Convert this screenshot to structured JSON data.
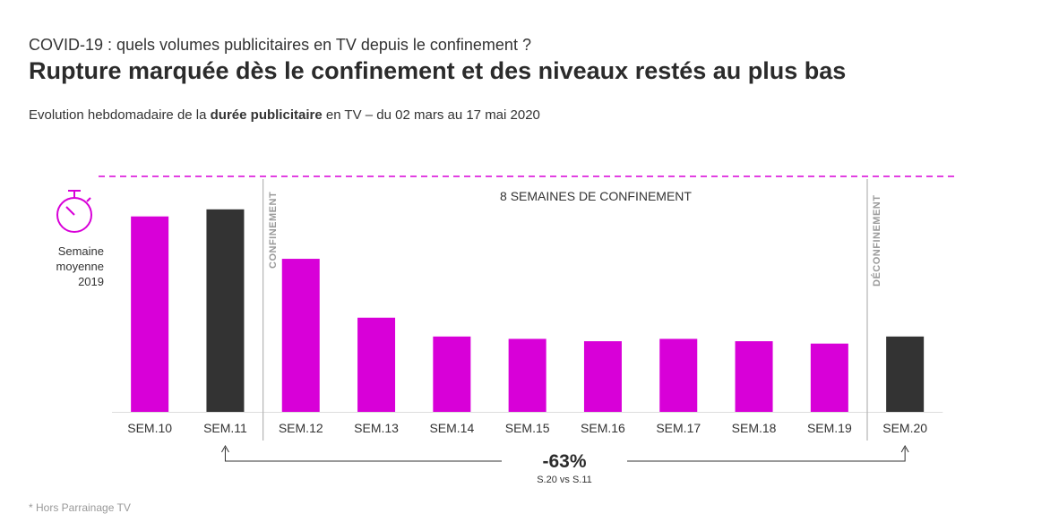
{
  "header": {
    "kicker": "COVID-19 : quels volumes publicitaires en TV depuis le confinement ?",
    "title": "Rupture marquée dès le confinement et des niveaux restés au plus bas",
    "subtitle_pre": "Evolution hebdomadaire de la ",
    "subtitle_bold": "durée publicitaire",
    "subtitle_post": " en TV – du 02 mars au 17 mai 2020"
  },
  "legend": {
    "icon": "stopwatch-icon",
    "line1": "Semaine",
    "line2": "moyenne",
    "line3": "2019"
  },
  "annotations": {
    "confinement": "CONFINEMENT",
    "deconfinement": "DÉCONFINEMENT",
    "period": "8 SEMAINES DE CONFINEMENT",
    "change": "-63%",
    "change_note": "S.20 vs S.11"
  },
  "footnote": "* Hors Parrainage TV",
  "colors": {
    "accent": "#d800d8",
    "dark": "#333333",
    "divider": "#b5b5b5"
  },
  "chart_data": {
    "type": "bar",
    "categories": [
      "SEM.10",
      "SEM.11",
      "SEM.12",
      "SEM.13",
      "SEM.14",
      "SEM.15",
      "SEM.16",
      "SEM.17",
      "SEM.18",
      "SEM.19",
      "SEM.20"
    ],
    "values": [
      83,
      86,
      65,
      40,
      32,
      31,
      30,
      31,
      30,
      29,
      32
    ],
    "bar_colors": [
      "#d800d8",
      "#333333",
      "#d800d8",
      "#d800d8",
      "#d800d8",
      "#d800d8",
      "#d800d8",
      "#d800d8",
      "#d800d8",
      "#d800d8",
      "#333333"
    ],
    "reference_line": {
      "value": 100
    },
    "ylim": [
      0,
      100
    ],
    "grid": false,
    "xlabel": "",
    "ylabel": ""
  }
}
